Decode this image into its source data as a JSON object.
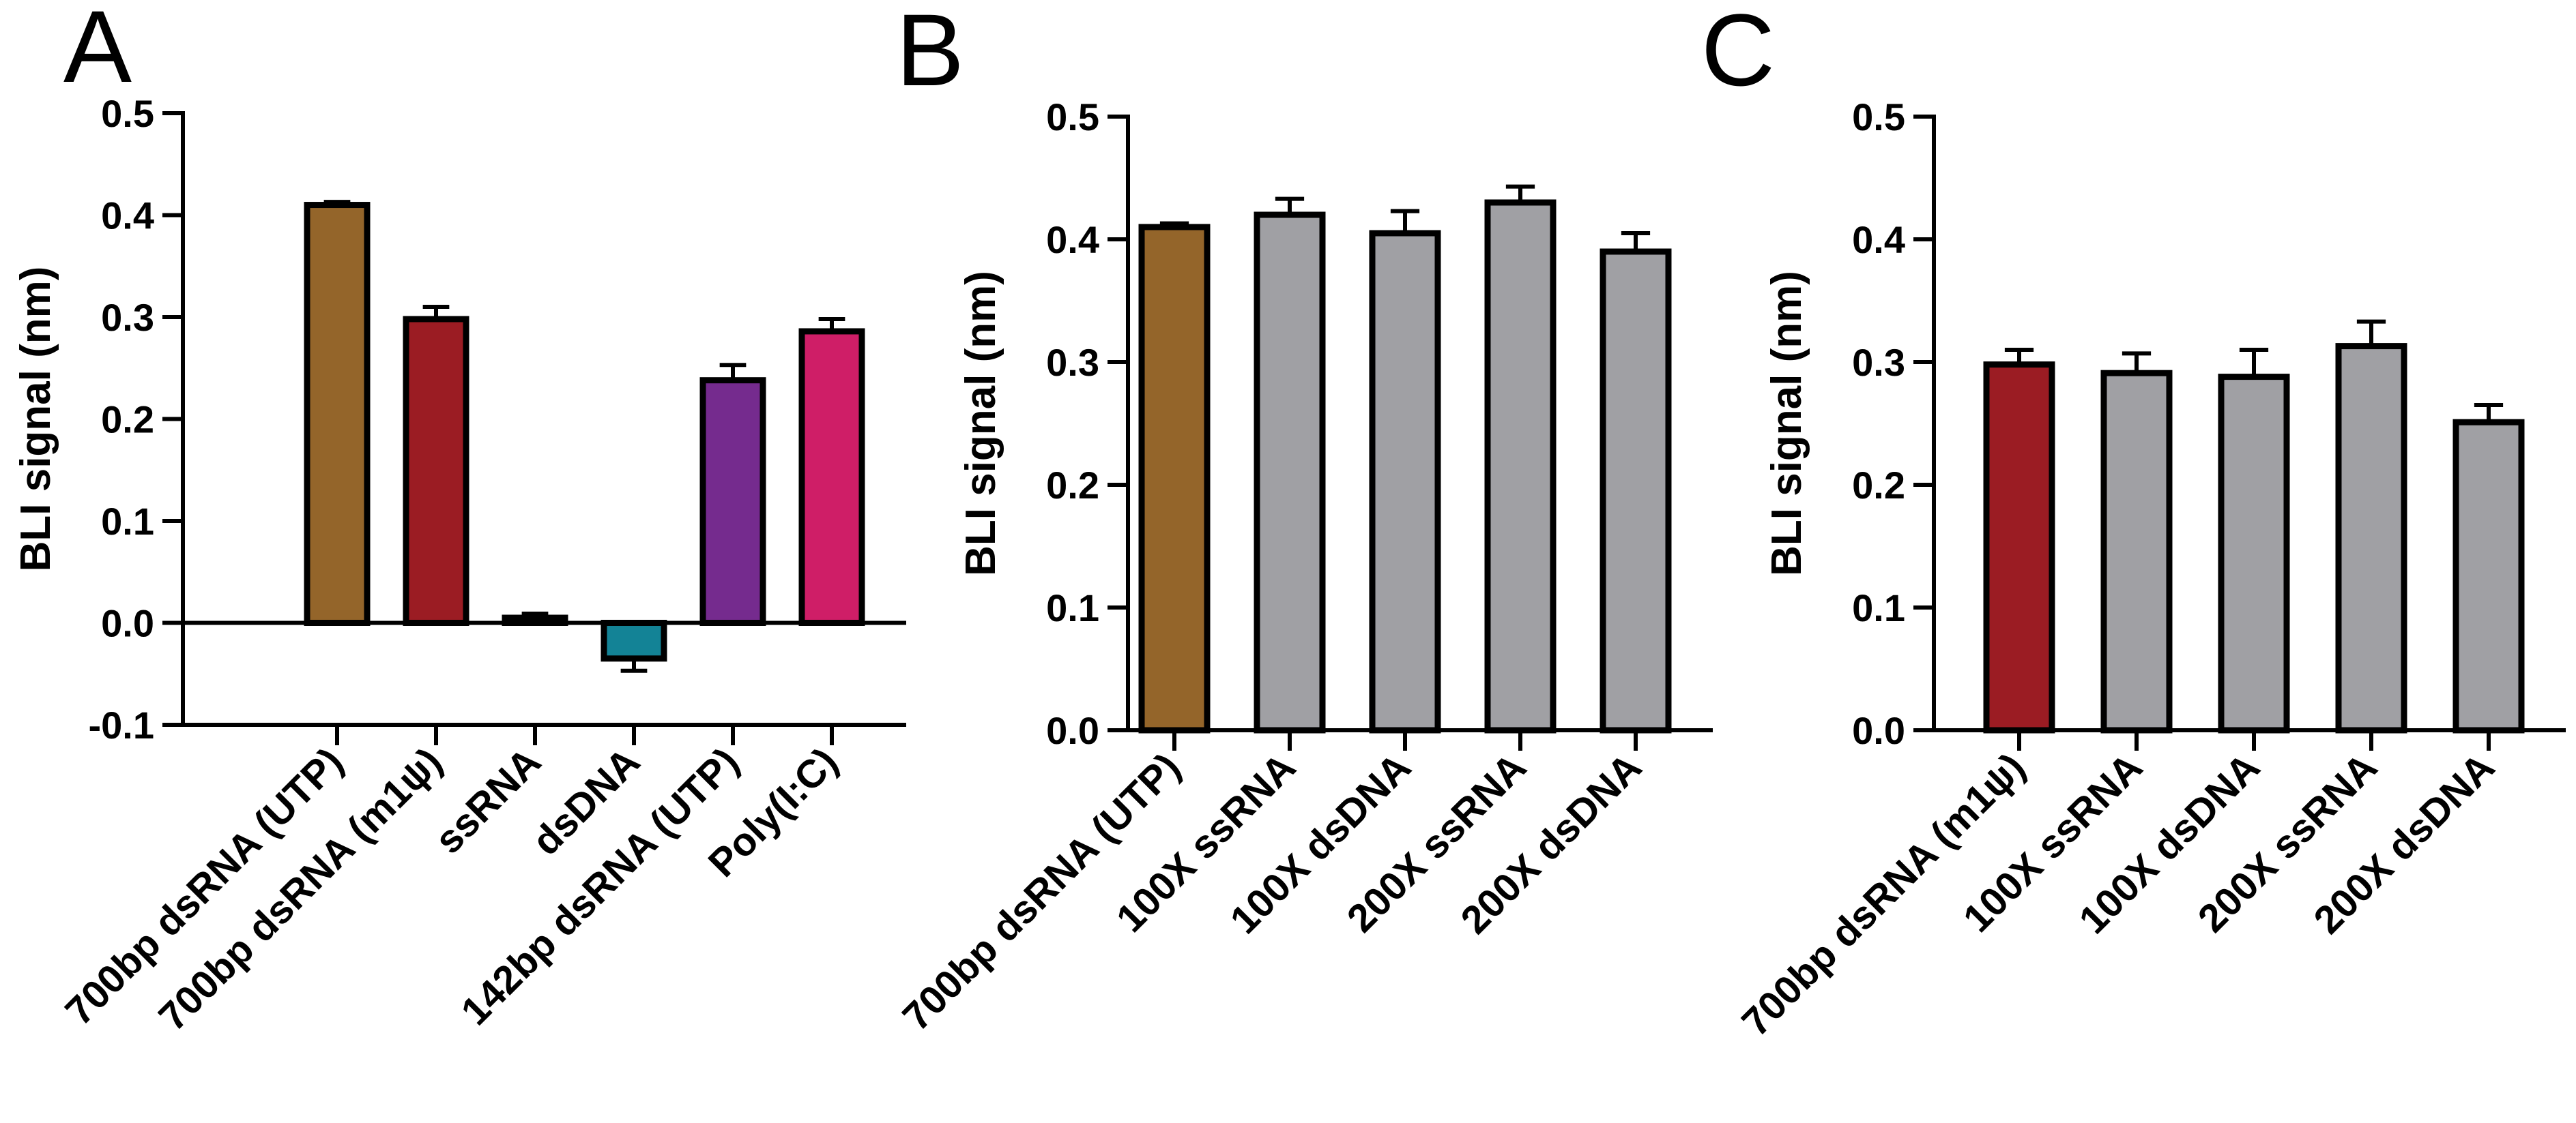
{
  "chart_data": [
    {
      "panel": "A",
      "type": "bar",
      "ylabel": "BLI signal (nm)",
      "ylim": [
        -0.1,
        0.5
      ],
      "yticks": [
        -0.1,
        0.0,
        0.1,
        0.2,
        0.3,
        0.4,
        0.5
      ],
      "ytick_labels": [
        "-0.1",
        "0.0",
        "0.1",
        "0.2",
        "0.3",
        "0.4",
        "0.5"
      ],
      "categories": [
        "700bp dsRNA (UTP)",
        "700bp dsRNA (m1ψ)",
        "ssRNA",
        "dsDNA",
        "142bp dsRNA (UTP)",
        "Poly(I:C)"
      ],
      "values": [
        0.41,
        0.298,
        0.005,
        -0.035,
        0.238,
        0.286
      ],
      "errors": [
        0.003,
        0.012,
        0.004,
        0.012,
        0.015,
        0.012
      ],
      "colors": [
        "#94652a",
        "#9b1c23",
        "#b0b0b0",
        "#138396",
        "#752b8e",
        "#cf1e67"
      ]
    },
    {
      "panel": "B",
      "type": "bar",
      "ylabel": "BLI signal (nm)",
      "ylim": [
        0.0,
        0.5
      ],
      "yticks": [
        0.0,
        0.1,
        0.2,
        0.3,
        0.4,
        0.5
      ],
      "ytick_labels": [
        "0.0",
        "0.1",
        "0.2",
        "0.3",
        "0.4",
        "0.5"
      ],
      "categories": [
        "700bp dsRNA (UTP)",
        "100X ssRNA",
        "100X dsDNA",
        "200X ssRNA",
        "200X dsDNA"
      ],
      "values": [
        0.41,
        0.42,
        0.405,
        0.43,
        0.39
      ],
      "errors": [
        0.003,
        0.013,
        0.018,
        0.013,
        0.015
      ],
      "colors": [
        "#94652a",
        "#a0a0a4",
        "#a0a0a4",
        "#a0a0a4",
        "#a0a0a4"
      ]
    },
    {
      "panel": "C",
      "type": "bar",
      "ylabel": "BLI signal (nm)",
      "ylim": [
        0.0,
        0.5
      ],
      "yticks": [
        0.0,
        0.1,
        0.2,
        0.3,
        0.4,
        0.5
      ],
      "ytick_labels": [
        "0.0",
        "0.1",
        "0.2",
        "0.3",
        "0.4",
        "0.5"
      ],
      "categories": [
        "700bp dsRNA (m1ψ)",
        "100X ssRNA",
        "100X dsDNA",
        "200X ssRNA",
        "200X dsDNA"
      ],
      "values": [
        0.298,
        0.291,
        0.288,
        0.313,
        0.251
      ],
      "errors": [
        0.012,
        0.016,
        0.022,
        0.02,
        0.014
      ],
      "colors": [
        "#9b1c23",
        "#a0a0a4",
        "#a0a0a4",
        "#a0a0a4",
        "#a0a0a4"
      ]
    }
  ]
}
